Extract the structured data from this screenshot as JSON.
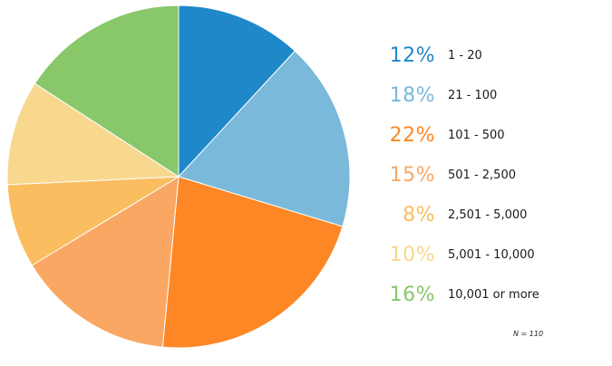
{
  "chart_data": {
    "type": "pie",
    "title": "",
    "slices": [
      {
        "label": "1 - 20",
        "value": 12,
        "percent_text": "12%",
        "color": "#1f88c9"
      },
      {
        "label": "21 - 100",
        "value": 18,
        "percent_text": "18%",
        "color": "#7ab9da"
      },
      {
        "label": "101 - 500",
        "value": 22,
        "percent_text": "22%",
        "color": "#fd8724"
      },
      {
        "label": "501 - 2,500",
        "value": 15,
        "percent_text": "15%",
        "color": "#f9a762"
      },
      {
        "label": "2,501 - 5,000",
        "value": 8,
        "percent_text": "8%",
        "color": "#fabd5f"
      },
      {
        "label": "5,001 - 10,000",
        "value": 10,
        "percent_text": "10%",
        "color": "#f8d88f"
      },
      {
        "label": "10,001 or more",
        "value": 16,
        "percent_text": "16%",
        "color": "#88c76a"
      }
    ],
    "legend_position": "right",
    "note": "N = 110"
  }
}
